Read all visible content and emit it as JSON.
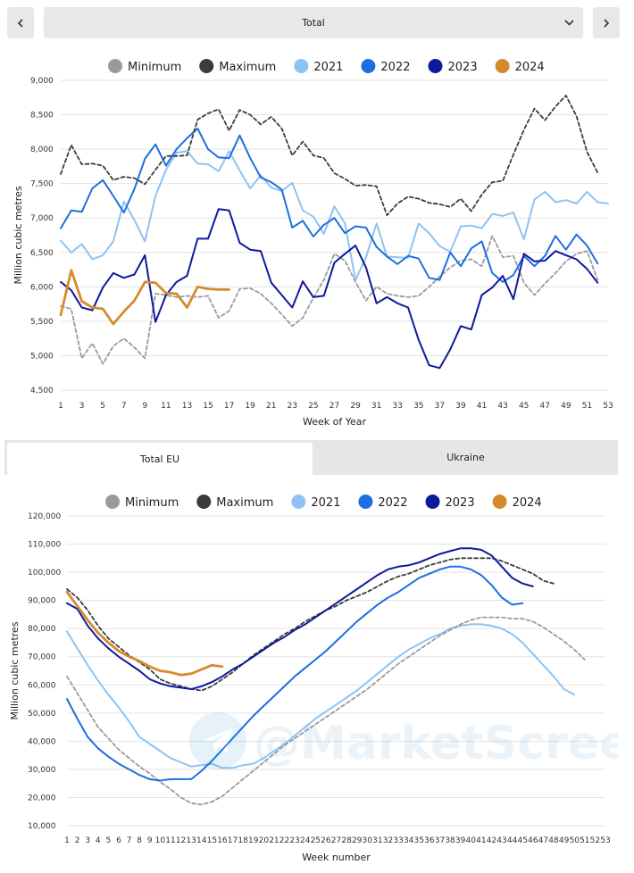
{
  "nav": {
    "prev_icon": "chevron-left-icon",
    "next_icon": "chevron-right-icon",
    "dropdown_icon": "chevron-down-icon",
    "selected": "Total"
  },
  "tabs": [
    {
      "label": "Total EU",
      "active": true
    },
    {
      "label": "Ukraine",
      "active": false
    }
  ],
  "watermark": "@MarketScreen",
  "colors": {
    "Minimum": "#9a9a9a",
    "Maximum": "#3c3c3c",
    "2021": "#8ec3f2",
    "2022": "#1d6fe0",
    "2023": "#0d1a9c",
    "2024": "#d68a2e"
  },
  "chart_data": [
    {
      "type": "line",
      "title": "",
      "xlabel": "Week of Year",
      "ylabel": "Million cubic metres",
      "xlim": [
        1,
        53
      ],
      "ylim": [
        4500,
        9000
      ],
      "xticks": [
        1,
        3,
        5,
        7,
        9,
        11,
        13,
        15,
        17,
        19,
        21,
        23,
        25,
        27,
        29,
        31,
        33,
        35,
        37,
        39,
        41,
        43,
        45,
        47,
        49,
        51,
        53
      ],
      "yticks": [
        4500,
        5000,
        5500,
        6000,
        6500,
        7000,
        7500,
        8000,
        8500,
        9000
      ],
      "ytick_labels": [
        "4,500",
        "5,000",
        "5,500",
        "6,000",
        "6,500",
        "7,000",
        "7,500",
        "8,000",
        "8,500",
        "9,000"
      ],
      "grid": true,
      "legend": "top-center",
      "series": [
        {
          "name": "Minimum",
          "dashed": true,
          "values": [
            5720,
            5680,
            4960,
            5180,
            4880,
            5140,
            5250,
            5120,
            4960,
            5900,
            5880,
            5850,
            5870,
            5850,
            5870,
            5550,
            5650,
            5970,
            5980,
            5900,
            5760,
            5600,
            5430,
            5550,
            5840,
            6100,
            6480,
            6380,
            6070,
            5800,
            6000,
            5900,
            5870,
            5850,
            5870,
            6000,
            6150,
            6280,
            6380,
            6400,
            6300,
            6740,
            6430,
            6450,
            6060,
            5880,
            6050,
            6200,
            6370,
            6480,
            6520,
            6100
          ]
        },
        {
          "name": "Maximum",
          "dashed": true,
          "values": [
            7640,
            8060,
            7780,
            7790,
            7760,
            7550,
            7600,
            7580,
            7490,
            7700,
            7900,
            7900,
            7910,
            8430,
            8520,
            8580,
            8270,
            8570,
            8500,
            8360,
            8470,
            8300,
            7910,
            8110,
            7910,
            7870,
            7650,
            7570,
            7470,
            7480,
            7460,
            7040,
            7210,
            7310,
            7280,
            7220,
            7200,
            7160,
            7280,
            7100,
            7340,
            7520,
            7540,
            7920,
            8280,
            8590,
            8420,
            8620,
            8780,
            8480,
            7960,
            7660
          ]
        },
        {
          "name": "2021",
          "values": [
            6670,
            6500,
            6620,
            6400,
            6460,
            6660,
            7240,
            6970,
            6660,
            7320,
            7700,
            7950,
            7970,
            7790,
            7780,
            7680,
            7970,
            7690,
            7430,
            7620,
            7440,
            7390,
            7510,
            7110,
            7020,
            6770,
            7170,
            6920,
            6100,
            6430,
            6920,
            6440,
            6430,
            6420,
            6920,
            6780,
            6590,
            6510,
            6880,
            6890,
            6850,
            7060,
            7030,
            7080,
            6690,
            7270,
            7380,
            7230,
            7260,
            7210,
            7380,
            7230,
            7210
          ]
        },
        {
          "name": "2022",
          "values": [
            6850,
            7110,
            7090,
            7430,
            7550,
            7320,
            7080,
            7420,
            7860,
            8070,
            7760,
            8000,
            8160,
            8300,
            8000,
            7880,
            7870,
            8200,
            7870,
            7590,
            7520,
            7410,
            6860,
            6960,
            6730,
            6900,
            7000,
            6780,
            6880,
            6860,
            6580,
            6440,
            6330,
            6450,
            6410,
            6130,
            6100,
            6500,
            6300,
            6560,
            6660,
            6200,
            6070,
            6170,
            6450,
            6300,
            6450,
            6740,
            6540,
            6760,
            6600,
            6340
          ]
        },
        {
          "name": "2023",
          "values": [
            6070,
            5950,
            5700,
            5660,
            5990,
            6200,
            6130,
            6180,
            6460,
            5490,
            5880,
            6070,
            6160,
            6700,
            6700,
            7130,
            7110,
            6640,
            6540,
            6520,
            6060,
            5880,
            5700,
            6080,
            5850,
            5870,
            6350,
            6480,
            6600,
            6280,
            5760,
            5850,
            5760,
            5700,
            5230,
            4860,
            4820,
            5090,
            5430,
            5380,
            5880,
            5990,
            6160,
            5820,
            6480,
            6370,
            6380,
            6520,
            6460,
            6400,
            6260,
            6060
          ]
        },
        {
          "name": "2024",
          "values": [
            5590,
            6240,
            5790,
            5700,
            5680,
            5460,
            5640,
            5800,
            6070,
            6060,
            5910,
            5900,
            5700,
            6000,
            5970,
            5960,
            5960
          ]
        }
      ]
    },
    {
      "type": "line",
      "title": "",
      "xlabel": "Week number",
      "ylabel": "Million cubic metres",
      "xlim": [
        1,
        53
      ],
      "ylim": [
        10000,
        120000
      ],
      "xticks": [
        1,
        2,
        3,
        4,
        5,
        6,
        7,
        8,
        9,
        10,
        11,
        12,
        13,
        14,
        15,
        16,
        17,
        18,
        19,
        20,
        21,
        22,
        23,
        24,
        25,
        26,
        27,
        28,
        29,
        30,
        31,
        32,
        33,
        34,
        35,
        36,
        37,
        38,
        39,
        40,
        41,
        42,
        43,
        44,
        45,
        46,
        47,
        48,
        49,
        50,
        51,
        52,
        53
      ],
      "yticks": [
        10000,
        20000,
        30000,
        40000,
        50000,
        60000,
        70000,
        80000,
        90000,
        100000,
        110000,
        120000
      ],
      "ytick_labels": [
        "10,000",
        "20,000",
        "30,000",
        "40,000",
        "50,000",
        "60,000",
        "70,000",
        "80,000",
        "90,000",
        "100,000",
        "110,000",
        "120,000"
      ],
      "grid": true,
      "legend": "top-center",
      "series": [
        {
          "name": "Minimum",
          "dashed": true,
          "values": [
            63000,
            57000,
            51000,
            45000,
            41000,
            37000,
            34000,
            31000,
            28500,
            25500,
            23000,
            20000,
            18000,
            17500,
            18500,
            20500,
            23500,
            26500,
            29500,
            32500,
            35500,
            38500,
            41000,
            43500,
            46000,
            48500,
            51000,
            53500,
            56000,
            58500,
            61500,
            64500,
            67500,
            70000,
            72500,
            75000,
            77500,
            79500,
            81500,
            83000,
            84000,
            84000,
            84000,
            83500,
            83500,
            82500,
            80500,
            78000,
            75500,
            72500,
            69000
          ]
        },
        {
          "name": "Maximum",
          "dashed": true,
          "values": [
            94000,
            91000,
            86500,
            81000,
            76500,
            73500,
            70500,
            68000,
            65500,
            62000,
            60500,
            59500,
            58500,
            58000,
            59500,
            62000,
            64500,
            67500,
            70500,
            73000,
            75500,
            78000,
            80000,
            82500,
            84500,
            86500,
            88000,
            90000,
            91500,
            93000,
            95000,
            97000,
            98500,
            99500,
            101000,
            102500,
            103500,
            104500,
            105000,
            105000,
            105000,
            105000,
            104000,
            102500,
            101000,
            99500,
            97000,
            96000
          ]
        },
        {
          "name": "2021",
          "values": [
            79000,
            73000,
            67000,
            61500,
            56500,
            52000,
            47000,
            41500,
            39000,
            36500,
            34000,
            32500,
            31000,
            31500,
            32000,
            30500,
            30500,
            31500,
            32000,
            34000,
            36500,
            39000,
            42000,
            45000,
            48000,
            50500,
            53000,
            55500,
            58000,
            61000,
            64000,
            67000,
            70000,
            72500,
            74500,
            76500,
            78000,
            80000,
            81000,
            81500,
            81500,
            81000,
            80000,
            78000,
            75000,
            71000,
            67000,
            63000,
            58500,
            56500
          ]
        },
        {
          "name": "2022",
          "values": [
            55000,
            48000,
            41500,
            37500,
            34500,
            32000,
            30000,
            28000,
            26500,
            26000,
            26500,
            26500,
            26500,
            29500,
            33000,
            37000,
            41000,
            45000,
            49000,
            52500,
            56000,
            59500,
            63000,
            66000,
            69000,
            72000,
            75500,
            79000,
            82500,
            85500,
            88500,
            91000,
            93000,
            95500,
            98000,
            99500,
            101000,
            102000,
            102000,
            101000,
            99000,
            95500,
            91000,
            88500,
            89000
          ]
        },
        {
          "name": "2023",
          "values": [
            89000,
            87000,
            81000,
            76500,
            73000,
            70000,
            67500,
            65000,
            62000,
            60500,
            59500,
            59000,
            58500,
            59500,
            61000,
            63000,
            65500,
            67500,
            70000,
            72500,
            75000,
            77000,
            79500,
            81500,
            84000,
            86500,
            89000,
            91500,
            94000,
            96500,
            99000,
            101000,
            102000,
            102500,
            103500,
            105000,
            106500,
            107500,
            108500,
            108500,
            108000,
            106000,
            102000,
            98000,
            96000,
            95000
          ]
        },
        {
          "name": "2024",
          "values": [
            93000,
            88000,
            83000,
            78500,
            75000,
            72000,
            70000,
            68500,
            66500,
            65000,
            64500,
            63500,
            64000,
            65500,
            67000,
            66500
          ]
        }
      ]
    }
  ]
}
